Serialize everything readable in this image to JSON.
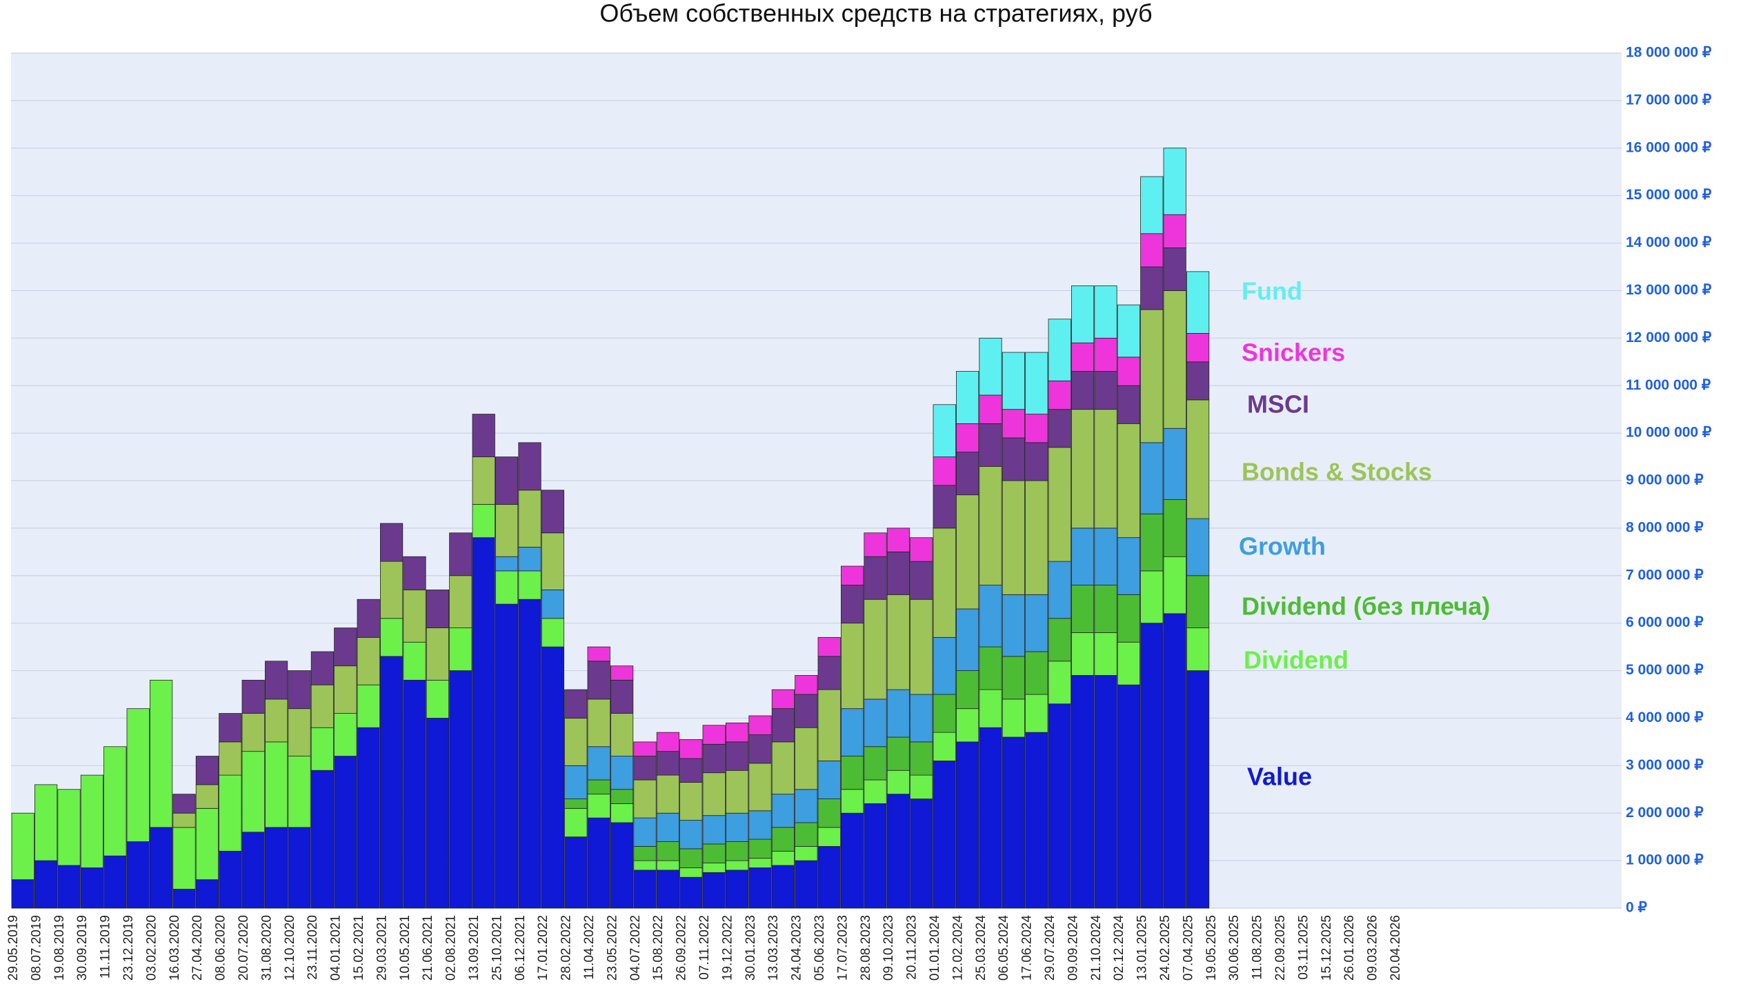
{
  "chart_data": {
    "type": "stacked_bar",
    "title": "Объем собственных средств на стратегиях, руб",
    "categories": [
      "29.05.2019",
      "08.07.2019",
      "19.08.2019",
      "30.09.2019",
      "11.11.2019",
      "23.12.2019",
      "03.02.2020",
      "16.03.2020",
      "27.04.2020",
      "08.06.2020",
      "20.07.2020",
      "31.08.2020",
      "12.10.2020",
      "23.11.2020",
      "04.01.2021",
      "15.02.2021",
      "29.03.2021",
      "10.05.2021",
      "21.06.2021",
      "02.08.2021",
      "13.09.2021",
      "25.10.2021",
      "06.12.2021",
      "17.01.2022",
      "28.02.2022",
      "11.04.2022",
      "23.05.2022",
      "04.07.2022",
      "15.08.2022",
      "26.09.2022",
      "07.11.2022",
      "19.12.2022",
      "30.01.2023",
      "13.03.2023",
      "24.04.2023",
      "05.06.2023",
      "17.07.2023",
      "28.08.2023",
      "09.10.2023",
      "20.11.2023",
      "01.01.2024",
      "12.02.2024",
      "25.03.2024",
      "06.05.2024",
      "17.06.2024",
      "29.07.2024",
      "09.09.2024",
      "21.10.2024",
      "02.12.2024",
      "13.01.2025",
      "24.02.2025",
      "07.04.2025",
      "19.05.2025",
      "30.06.2025",
      "11.08.2025",
      "22.09.2025",
      "03.11.2025",
      "15.12.2025",
      "26.01.2026",
      "09.03.2026",
      "20.04.2026"
    ],
    "series": [
      {
        "name": "Value",
        "color": "#0f19d6",
        "values": [
          600000,
          1000000,
          900000,
          850000,
          1100000,
          1400000,
          1700000,
          400000,
          600000,
          1200000,
          1600000,
          1700000,
          1700000,
          2900000,
          3200000,
          3800000,
          5300000,
          4800000,
          4000000,
          5000000,
          7800000,
          6400000,
          6500000,
          5500000,
          1500000,
          1900000,
          1800000,
          800000,
          800000,
          650000,
          750000,
          800000,
          850000,
          900000,
          1000000,
          1300000,
          2000000,
          2200000,
          2400000,
          2300000,
          3100000,
          3500000,
          3800000,
          3600000,
          3700000,
          4300000,
          4900000,
          4900000,
          4700000,
          6000000,
          6200000,
          5000000,
          null,
          null,
          null,
          null,
          null,
          null,
          null,
          null,
          null
        ]
      },
      {
        "name": "Dividend",
        "color": "#6cf04a",
        "values": [
          1400000,
          1600000,
          1600000,
          1950000,
          2300000,
          2800000,
          3100000,
          1300000,
          1500000,
          1600000,
          1700000,
          1800000,
          1500000,
          900000,
          900000,
          900000,
          800000,
          800000,
          800000,
          900000,
          700000,
          700000,
          600000,
          600000,
          600000,
          500000,
          400000,
          200000,
          200000,
          200000,
          200000,
          200000,
          200000,
          300000,
          300000,
          400000,
          500000,
          500000,
          500000,
          500000,
          600000,
          700000,
          800000,
          800000,
          800000,
          900000,
          900000,
          900000,
          900000,
          1100000,
          1200000,
          900000,
          null,
          null,
          null,
          null,
          null,
          null,
          null,
          null,
          null
        ]
      },
      {
        "name": "Dividend (без плеча)",
        "color": "#4cbc34",
        "values": [
          0,
          0,
          0,
          0,
          0,
          0,
          0,
          0,
          0,
          0,
          0,
          0,
          0,
          0,
          0,
          0,
          0,
          0,
          0,
          0,
          0,
          0,
          0,
          0,
          200000,
          300000,
          300000,
          300000,
          400000,
          400000,
          400000,
          400000,
          400000,
          500000,
          500000,
          600000,
          700000,
          700000,
          700000,
          700000,
          800000,
          800000,
          900000,
          900000,
          900000,
          900000,
          1000000,
          1000000,
          1000000,
          1200000,
          1200000,
          1100000,
          null,
          null,
          null,
          null,
          null,
          null,
          null,
          null,
          null
        ]
      },
      {
        "name": "Growth",
        "color": "#3d9ee0",
        "values": [
          0,
          0,
          0,
          0,
          0,
          0,
          0,
          0,
          0,
          0,
          0,
          0,
          0,
          0,
          0,
          0,
          0,
          0,
          0,
          0,
          0,
          300000,
          500000,
          600000,
          700000,
          700000,
          700000,
          600000,
          600000,
          600000,
          600000,
          600000,
          600000,
          700000,
          700000,
          800000,
          1000000,
          1000000,
          1000000,
          1000000,
          1200000,
          1300000,
          1300000,
          1300000,
          1200000,
          1200000,
          1200000,
          1200000,
          1200000,
          1500000,
          1500000,
          1200000,
          null,
          null,
          null,
          null,
          null,
          null,
          null,
          null,
          null
        ]
      },
      {
        "name": "Bonds & Stocks",
        "color": "#9cc458",
        "values": [
          0,
          0,
          0,
          0,
          0,
          0,
          0,
          300000,
          500000,
          700000,
          800000,
          900000,
          1000000,
          900000,
          1000000,
          1000000,
          1200000,
          1100000,
          1100000,
          1100000,
          1000000,
          1100000,
          1200000,
          1200000,
          1000000,
          1000000,
          900000,
          800000,
          800000,
          800000,
          900000,
          900000,
          1000000,
          1100000,
          1300000,
          1500000,
          1800000,
          2100000,
          2000000,
          2000000,
          2300000,
          2400000,
          2500000,
          2400000,
          2400000,
          2400000,
          2500000,
          2500000,
          2400000,
          2800000,
          2900000,
          2500000,
          null,
          null,
          null,
          null,
          null,
          null,
          null,
          null,
          null
        ]
      },
      {
        "name": "MSCI",
        "color": "#6b3a8e",
        "values": [
          0,
          0,
          0,
          0,
          0,
          0,
          0,
          400000,
          600000,
          600000,
          700000,
          800000,
          800000,
          700000,
          800000,
          800000,
          800000,
          700000,
          800000,
          900000,
          900000,
          1000000,
          1000000,
          900000,
          600000,
          800000,
          700000,
          500000,
          500000,
          500000,
          600000,
          600000,
          600000,
          700000,
          700000,
          700000,
          800000,
          900000,
          900000,
          800000,
          900000,
          900000,
          900000,
          900000,
          800000,
          800000,
          800000,
          800000,
          800000,
          900000,
          900000,
          800000,
          null,
          null,
          null,
          null,
          null,
          null,
          null,
          null,
          null
        ]
      },
      {
        "name": "Snickers",
        "color": "#ee35dc",
        "values": [
          0,
          0,
          0,
          0,
          0,
          0,
          0,
          0,
          0,
          0,
          0,
          0,
          0,
          0,
          0,
          0,
          0,
          0,
          0,
          0,
          0,
          0,
          0,
          0,
          0,
          300000,
          300000,
          300000,
          400000,
          400000,
          400000,
          400000,
          400000,
          400000,
          400000,
          400000,
          400000,
          500000,
          500000,
          500000,
          600000,
          600000,
          600000,
          600000,
          600000,
          600000,
          600000,
          700000,
          600000,
          700000,
          700000,
          600000,
          null,
          null,
          null,
          null,
          null,
          null,
          null,
          null,
          null
        ]
      },
      {
        "name": "Fund",
        "color": "#5ef0f0",
        "values": [
          0,
          0,
          0,
          0,
          0,
          0,
          0,
          0,
          0,
          0,
          0,
          0,
          0,
          0,
          0,
          0,
          0,
          0,
          0,
          0,
          0,
          0,
          0,
          0,
          0,
          0,
          0,
          0,
          0,
          0,
          0,
          0,
          0,
          0,
          0,
          0,
          0,
          0,
          0,
          0,
          1100000,
          1100000,
          1200000,
          1200000,
          1300000,
          1300000,
          1200000,
          1100000,
          1100000,
          1200000,
          1400000,
          1300000,
          null,
          null,
          null,
          null,
          null,
          null,
          null,
          null,
          null
        ]
      }
    ],
    "ylim": [
      0,
      18000000
    ],
    "yticks": [
      {
        "value": 0,
        "label": "0 ₽"
      },
      {
        "value": 1000000,
        "label": "1 000 000 ₽"
      },
      {
        "value": 2000000,
        "label": "2 000 000 ₽"
      },
      {
        "value": 3000000,
        "label": "3 000 000 ₽"
      },
      {
        "value": 4000000,
        "label": "4 000 000 ₽"
      },
      {
        "value": 5000000,
        "label": "5 000 000 ₽"
      },
      {
        "value": 6000000,
        "label": "6 000 000 ₽"
      },
      {
        "value": 7000000,
        "label": "7 000 000 ₽"
      },
      {
        "value": 8000000,
        "label": "8 000 000 ₽"
      },
      {
        "value": 9000000,
        "label": "9 000 000 ₽"
      },
      {
        "value": 10000000,
        "label": "10 000 000 ₽"
      },
      {
        "value": 11000000,
        "label": "11 000 000 ₽"
      },
      {
        "value": 12000000,
        "label": "12 000 000 ₽"
      },
      {
        "value": 13000000,
        "label": "13 000 000 ₽"
      },
      {
        "value": 14000000,
        "label": "14 000 000 ₽"
      },
      {
        "value": 15000000,
        "label": "15 000 000 ₽"
      },
      {
        "value": 16000000,
        "label": "16 000 000 ₽"
      },
      {
        "value": 17000000,
        "label": "17 000 000 ₽"
      },
      {
        "value": 18000000,
        "label": "18 000 000 ₽"
      }
    ],
    "grid": true
  }
}
